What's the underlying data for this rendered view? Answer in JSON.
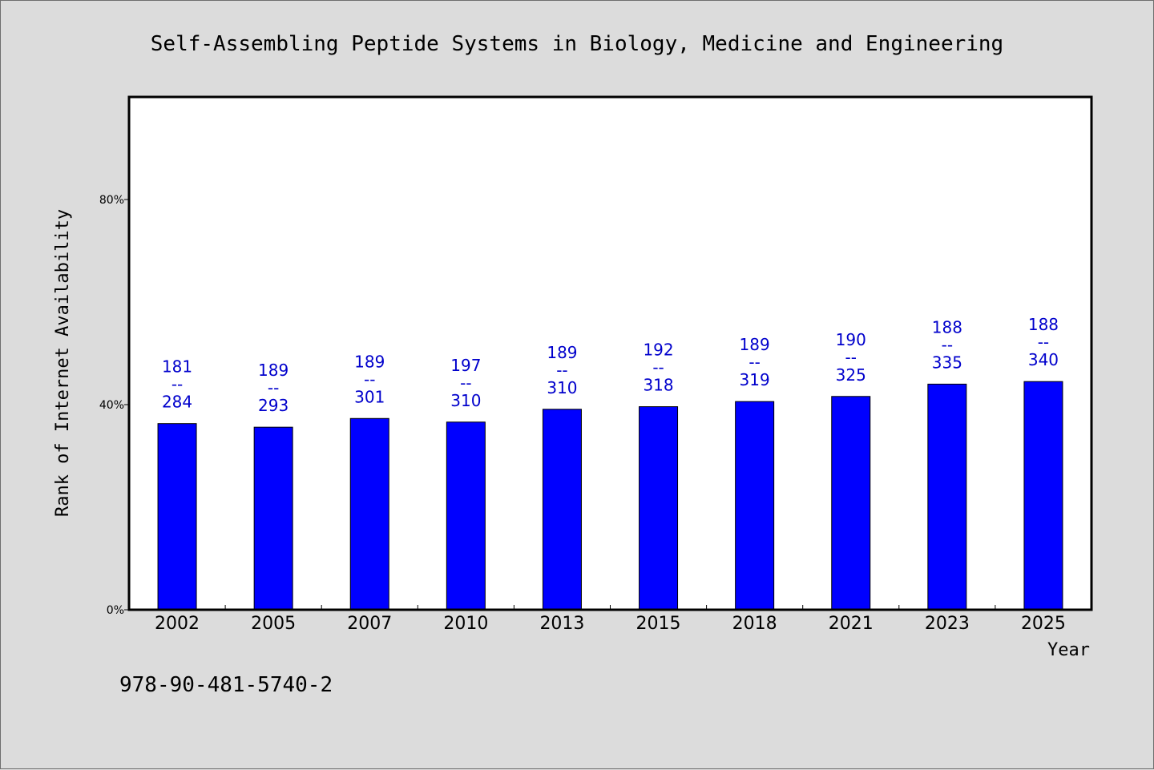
{
  "colors": {
    "background": "#dcdcdc",
    "plot_background": "#ffffff",
    "bar": "#0000ff",
    "data_label": "#0000cc",
    "axis": "#000000"
  },
  "isbn": "978-90-481-5740-2",
  "chart_data": {
    "type": "bar",
    "title": "Self-Assembling Peptide Systems in Biology, Medicine and Engineering",
    "xlabel": "Year",
    "ylabel": "Rank of Internet Availability",
    "ylim": [
      0,
      100
    ],
    "yticks": [
      {
        "value": 0,
        "label": "0%"
      },
      {
        "value": 40,
        "label": "40%"
      },
      {
        "value": 80,
        "label": "80%"
      }
    ],
    "grid": false,
    "categories": [
      "2002",
      "2005",
      "2007",
      "2010",
      "2013",
      "2015",
      "2018",
      "2021",
      "2023",
      "2025"
    ],
    "values": [
      36.3,
      35.6,
      37.3,
      36.6,
      39.1,
      39.6,
      40.6,
      41.6,
      44.0,
      44.5
    ],
    "labels": [
      [
        "181",
        "--",
        "284"
      ],
      [
        "189",
        "--",
        "293"
      ],
      [
        "189",
        "--",
        "301"
      ],
      [
        "197",
        "--",
        "310"
      ],
      [
        "189",
        "--",
        "310"
      ],
      [
        "192",
        "--",
        "318"
      ],
      [
        "189",
        "--",
        "319"
      ],
      [
        "190",
        "--",
        "325"
      ],
      [
        "188",
        "--",
        "335"
      ],
      [
        "188",
        "--",
        "340"
      ]
    ]
  }
}
